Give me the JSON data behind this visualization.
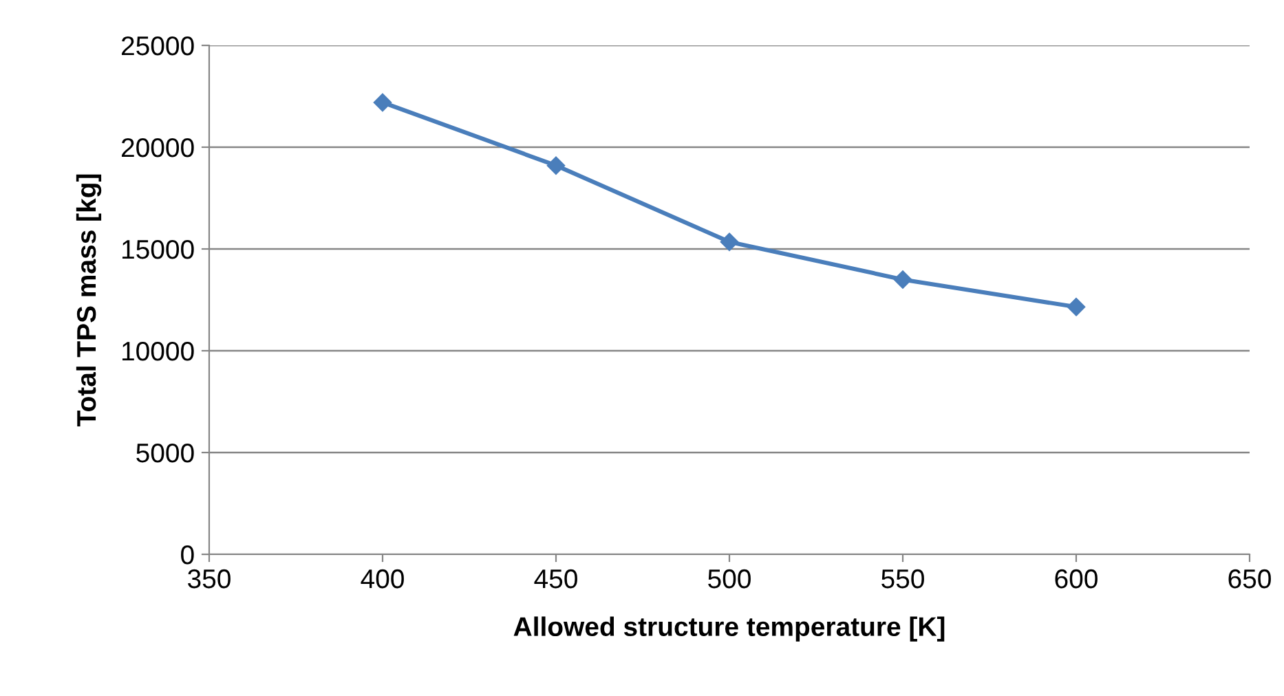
{
  "chart_data": {
    "type": "line",
    "xlabel": "Allowed structure temperature [K]",
    "ylabel": "Total TPS mass [kg]",
    "x": [
      400,
      450,
      500,
      550,
      600
    ],
    "series": [
      {
        "color": "#4a7ebb",
        "values": [
          22200,
          19100,
          15350,
          13500,
          12150
        ]
      }
    ],
    "xlim": [
      350,
      650
    ],
    "xticks": [
      350,
      400,
      450,
      500,
      550,
      600,
      650
    ],
    "ylim": [
      0,
      25000
    ],
    "yticks": [
      0,
      5000,
      10000,
      15000,
      20000,
      25000
    ],
    "grid": "y",
    "legend": false,
    "marker": "diamond",
    "line_style": "solid"
  }
}
